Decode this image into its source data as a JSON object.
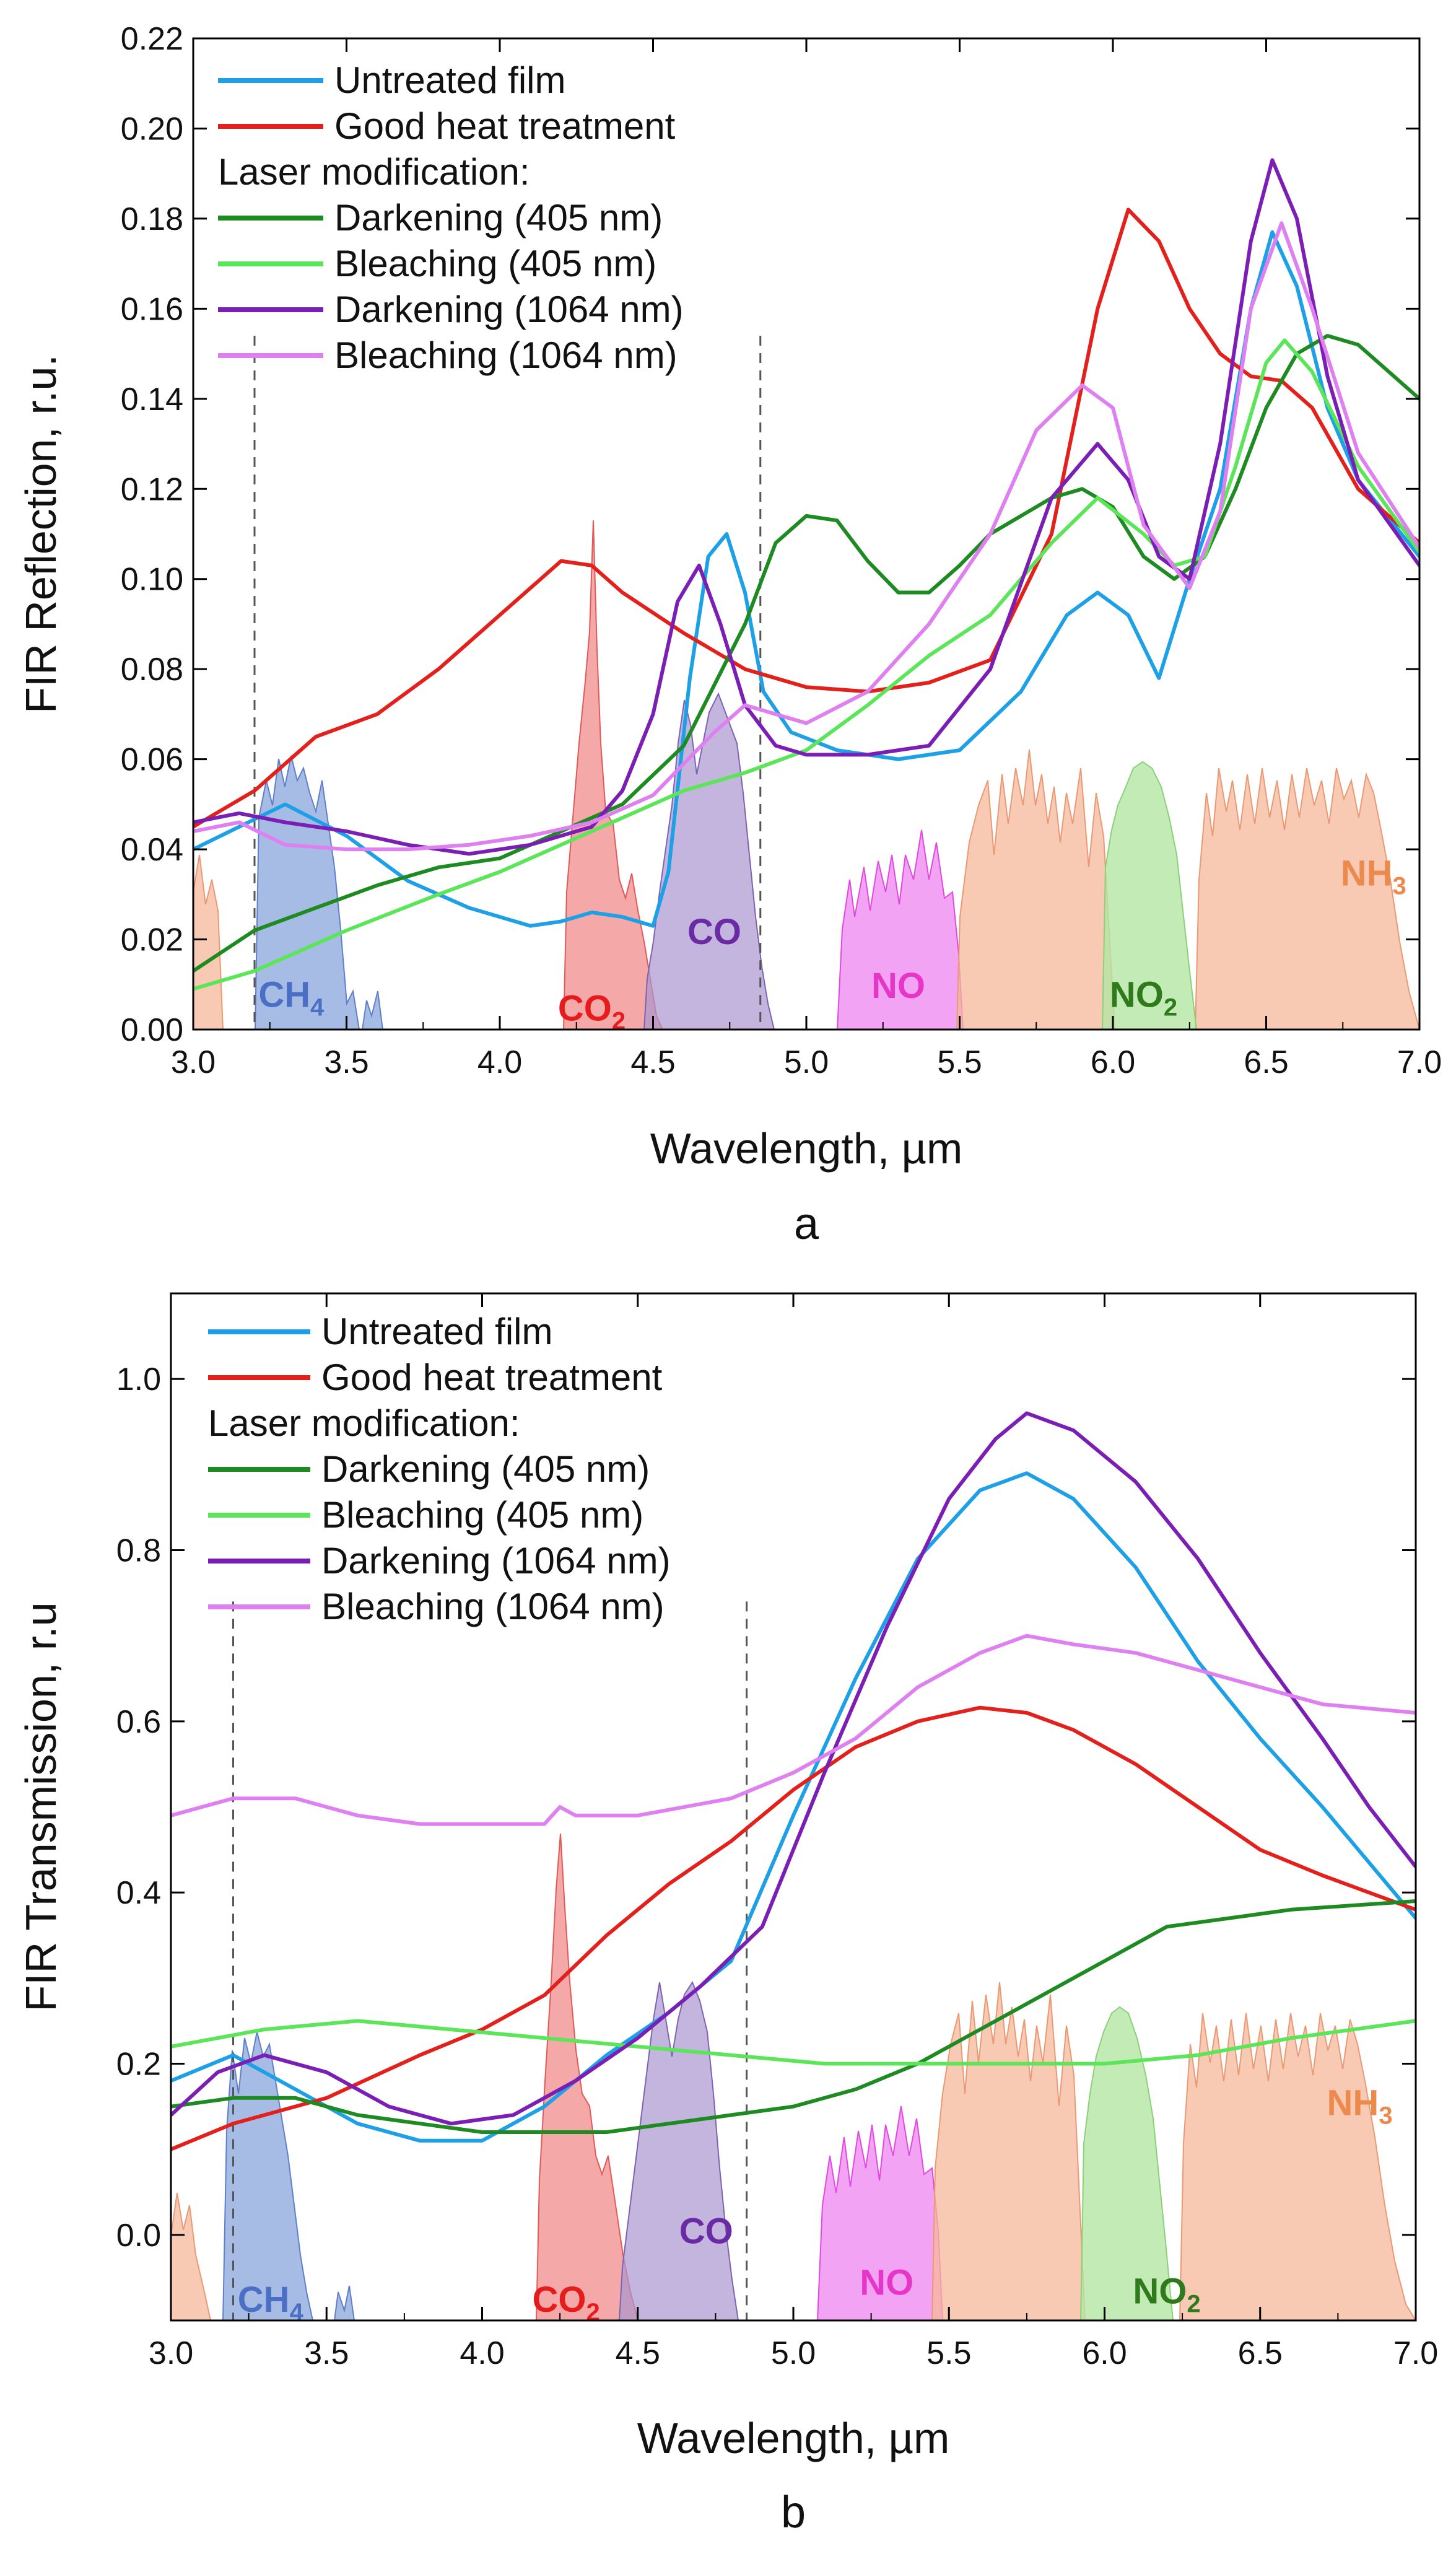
{
  "figure": {
    "panel_labels": [
      "a",
      "b"
    ]
  },
  "chart_data": [
    {
      "id": "a",
      "type": "line",
      "title": "",
      "xlabel": "Wavelength, µm",
      "ylabel": "FIR Reflection, r.u.",
      "xlim": [
        3.0,
        7.0
      ],
      "ylim": [
        0.0,
        0.22
      ],
      "xticks": [
        3.0,
        3.5,
        4.0,
        4.5,
        5.0,
        5.5,
        6.0,
        6.5,
        7.0
      ],
      "yticks": [
        0.0,
        0.02,
        0.04,
        0.06,
        0.08,
        0.1,
        0.12,
        0.14,
        0.16,
        0.18,
        0.2,
        0.22
      ],
      "ytick_decimals": 2,
      "legend_heading": "Laser modification:",
      "dashed_lines_x": [
        3.2,
        4.85
      ],
      "series": [
        {
          "name": "Untreated film",
          "color": "#1ea0e6",
          "x": [
            3.0,
            3.15,
            3.3,
            3.5,
            3.7,
            3.9,
            4.1,
            4.2,
            4.3,
            4.4,
            4.5,
            4.55,
            4.62,
            4.68,
            4.74,
            4.8,
            4.86,
            4.95,
            5.1,
            5.3,
            5.5,
            5.7,
            5.85,
            5.95,
            6.05,
            6.15,
            6.25,
            6.35,
            6.45,
            6.52,
            6.6,
            6.7,
            6.8,
            7.0
          ],
          "y": [
            0.04,
            0.045,
            0.05,
            0.043,
            0.033,
            0.027,
            0.023,
            0.024,
            0.026,
            0.025,
            0.023,
            0.035,
            0.078,
            0.105,
            0.11,
            0.097,
            0.075,
            0.066,
            0.062,
            0.06,
            0.062,
            0.075,
            0.092,
            0.097,
            0.092,
            0.078,
            0.1,
            0.12,
            0.16,
            0.177,
            0.165,
            0.138,
            0.122,
            0.105
          ]
        },
        {
          "name": "Good heat treatment",
          "color": "#e3211c",
          "x": [
            3.0,
            3.2,
            3.4,
            3.6,
            3.8,
            4.0,
            4.2,
            4.3,
            4.4,
            4.6,
            4.8,
            5.0,
            5.2,
            5.4,
            5.6,
            5.8,
            5.95,
            6.05,
            6.15,
            6.25,
            6.35,
            6.45,
            6.55,
            6.65,
            6.8,
            7.0
          ],
          "y": [
            0.045,
            0.053,
            0.065,
            0.07,
            0.08,
            0.092,
            0.104,
            0.103,
            0.097,
            0.088,
            0.08,
            0.076,
            0.075,
            0.077,
            0.082,
            0.11,
            0.16,
            0.182,
            0.175,
            0.16,
            0.15,
            0.145,
            0.144,
            0.138,
            0.12,
            0.108
          ]
        },
        {
          "name": "Darkening (405 nm)",
          "color": "#1e8a22",
          "x": [
            3.0,
            3.2,
            3.4,
            3.6,
            3.8,
            4.0,
            4.2,
            4.4,
            4.6,
            4.8,
            4.9,
            5.0,
            5.1,
            5.2,
            5.3,
            5.4,
            5.5,
            5.6,
            5.8,
            5.9,
            6.0,
            6.1,
            6.2,
            6.3,
            6.4,
            6.5,
            6.6,
            6.7,
            6.8,
            7.0
          ],
          "y": [
            0.013,
            0.022,
            0.027,
            0.032,
            0.036,
            0.038,
            0.044,
            0.05,
            0.063,
            0.09,
            0.108,
            0.114,
            0.113,
            0.104,
            0.097,
            0.097,
            0.103,
            0.11,
            0.118,
            0.12,
            0.116,
            0.105,
            0.1,
            0.105,
            0.12,
            0.138,
            0.15,
            0.154,
            0.152,
            0.14
          ]
        },
        {
          "name": "Bleaching (405 nm)",
          "color": "#5de55a",
          "x": [
            3.0,
            3.2,
            3.5,
            3.8,
            4.0,
            4.2,
            4.4,
            4.6,
            4.8,
            5.0,
            5.2,
            5.4,
            5.6,
            5.8,
            5.95,
            6.1,
            6.2,
            6.3,
            6.4,
            6.5,
            6.56,
            6.65,
            6.8,
            7.0
          ],
          "y": [
            0.009,
            0.013,
            0.022,
            0.03,
            0.035,
            0.041,
            0.047,
            0.053,
            0.057,
            0.062,
            0.072,
            0.083,
            0.092,
            0.108,
            0.118,
            0.11,
            0.103,
            0.105,
            0.125,
            0.148,
            0.153,
            0.146,
            0.125,
            0.106
          ]
        },
        {
          "name": "Darkening (1064 nm)",
          "color": "#7b1fb4",
          "x": [
            3.0,
            3.15,
            3.3,
            3.5,
            3.7,
            3.9,
            4.1,
            4.3,
            4.4,
            4.5,
            4.58,
            4.65,
            4.72,
            4.8,
            4.9,
            5.0,
            5.2,
            5.4,
            5.6,
            5.8,
            5.95,
            6.05,
            6.15,
            6.25,
            6.35,
            6.45,
            6.52,
            6.6,
            6.7,
            6.8,
            7.0
          ],
          "y": [
            0.046,
            0.048,
            0.046,
            0.044,
            0.041,
            0.039,
            0.041,
            0.045,
            0.053,
            0.07,
            0.095,
            0.103,
            0.09,
            0.072,
            0.063,
            0.061,
            0.061,
            0.063,
            0.08,
            0.118,
            0.13,
            0.122,
            0.105,
            0.1,
            0.13,
            0.175,
            0.193,
            0.18,
            0.145,
            0.122,
            0.103
          ]
        },
        {
          "name": "Bleaching (1064 nm)",
          "color": "#df80f0",
          "x": [
            3.0,
            3.15,
            3.3,
            3.5,
            3.7,
            3.9,
            4.1,
            4.3,
            4.5,
            4.7,
            4.8,
            4.9,
            5.0,
            5.2,
            5.4,
            5.6,
            5.75,
            5.9,
            6.0,
            6.1,
            6.25,
            6.35,
            6.45,
            6.55,
            6.65,
            6.8,
            7.0
          ],
          "y": [
            0.044,
            0.046,
            0.041,
            0.04,
            0.04,
            0.041,
            0.043,
            0.046,
            0.052,
            0.066,
            0.072,
            0.07,
            0.068,
            0.075,
            0.09,
            0.11,
            0.133,
            0.143,
            0.138,
            0.112,
            0.098,
            0.115,
            0.16,
            0.179,
            0.16,
            0.128,
            0.107
          ]
        }
      ],
      "gas_labels": [
        {
          "text": "CH",
          "sub": "4",
          "color": "#4a6fc4",
          "x": 3.32,
          "y": 0.005
        },
        {
          "text": "CO",
          "sub": "2",
          "color": "#e61c1c",
          "x": 4.3,
          "y": 0.002
        },
        {
          "text": "CO",
          "sub": "",
          "color": "#6a2aa3",
          "x": 4.7,
          "y": 0.019
        },
        {
          "text": "NO",
          "sub": "",
          "color": "#e636c8",
          "x": 5.3,
          "y": 0.007
        },
        {
          "text": "NO",
          "sub": "2",
          "color": "#2f7a1a",
          "x": 6.1,
          "y": 0.005
        },
        {
          "text": "NH",
          "sub": "3",
          "color": "#ec8a4e",
          "x": 6.85,
          "y": 0.032
        }
      ]
    },
    {
      "id": "b",
      "type": "line",
      "title": "",
      "xlabel": "Wavelength, µm",
      "ylabel": "FIR Transmission, r.u",
      "xlim": [
        3.0,
        7.0
      ],
      "ylim": [
        -0.1,
        1.1
      ],
      "xticks": [
        3.0,
        3.5,
        4.0,
        4.5,
        5.0,
        5.5,
        6.0,
        6.5,
        7.0
      ],
      "yticks": [
        0.0,
        0.2,
        0.4,
        0.6,
        0.8,
        1.0
      ],
      "ytick_decimals": 1,
      "legend_heading": "Laser modification:",
      "dashed_lines_x": [
        3.2,
        4.85
      ],
      "series": [
        {
          "name": "Untreated film",
          "color": "#1ea0e6",
          "x": [
            3.0,
            3.2,
            3.4,
            3.6,
            3.8,
            4.0,
            4.2,
            4.4,
            4.6,
            4.8,
            5.0,
            5.2,
            5.4,
            5.6,
            5.75,
            5.9,
            6.1,
            6.3,
            6.5,
            6.7,
            7.0
          ],
          "y": [
            0.18,
            0.21,
            0.17,
            0.13,
            0.11,
            0.11,
            0.15,
            0.21,
            0.26,
            0.32,
            0.49,
            0.65,
            0.79,
            0.87,
            0.89,
            0.86,
            0.78,
            0.67,
            0.58,
            0.5,
            0.37
          ]
        },
        {
          "name": "Good heat treatment",
          "color": "#e3211c",
          "x": [
            3.0,
            3.2,
            3.5,
            3.8,
            4.0,
            4.2,
            4.4,
            4.6,
            4.8,
            5.0,
            5.2,
            5.4,
            5.6,
            5.75,
            5.9,
            6.1,
            6.3,
            6.5,
            6.7,
            6.85,
            7.0
          ],
          "y": [
            0.1,
            0.13,
            0.16,
            0.21,
            0.24,
            0.28,
            0.35,
            0.41,
            0.46,
            0.52,
            0.57,
            0.6,
            0.616,
            0.61,
            0.59,
            0.55,
            0.5,
            0.45,
            0.42,
            0.4,
            0.38
          ]
        },
        {
          "name": "Darkening (405 nm)",
          "color": "#1e8a22",
          "x": [
            3.0,
            3.2,
            3.4,
            3.6,
            3.8,
            4.0,
            4.2,
            4.4,
            4.6,
            4.8,
            5.0,
            5.2,
            5.4,
            5.6,
            5.8,
            6.0,
            6.2,
            6.4,
            6.6,
            6.8,
            7.0
          ],
          "y": [
            0.15,
            0.16,
            0.16,
            0.14,
            0.13,
            0.12,
            0.12,
            0.12,
            0.13,
            0.14,
            0.15,
            0.17,
            0.2,
            0.24,
            0.28,
            0.32,
            0.36,
            0.37,
            0.38,
            0.385,
            0.39
          ]
        },
        {
          "name": "Bleaching (405 nm)",
          "color": "#5de55a",
          "x": [
            3.0,
            3.3,
            3.6,
            3.9,
            4.2,
            4.5,
            4.8,
            5.1,
            5.4,
            5.7,
            6.0,
            6.3,
            6.6,
            7.0
          ],
          "y": [
            0.22,
            0.24,
            0.25,
            0.24,
            0.23,
            0.22,
            0.21,
            0.2,
            0.2,
            0.2,
            0.2,
            0.21,
            0.23,
            0.25
          ]
        },
        {
          "name": "Darkening (1064 nm)",
          "color": "#7b1fb4",
          "x": [
            3.0,
            3.15,
            3.3,
            3.5,
            3.7,
            3.9,
            4.1,
            4.3,
            4.5,
            4.7,
            4.9,
            5.1,
            5.3,
            5.5,
            5.65,
            5.75,
            5.9,
            6.1,
            6.3,
            6.5,
            6.7,
            6.85,
            7.0
          ],
          "y": [
            0.14,
            0.19,
            0.21,
            0.19,
            0.15,
            0.13,
            0.14,
            0.18,
            0.23,
            0.29,
            0.36,
            0.54,
            0.71,
            0.86,
            0.93,
            0.96,
            0.94,
            0.88,
            0.79,
            0.68,
            0.58,
            0.5,
            0.43
          ]
        },
        {
          "name": "Bleaching (1064 nm)",
          "color": "#df80f0",
          "x": [
            3.0,
            3.2,
            3.4,
            3.6,
            3.8,
            4.0,
            4.2,
            4.25,
            4.3,
            4.5,
            4.8,
            5.0,
            5.2,
            5.4,
            5.6,
            5.75,
            5.9,
            6.1,
            6.3,
            6.5,
            6.7,
            7.0
          ],
          "y": [
            0.49,
            0.51,
            0.51,
            0.49,
            0.48,
            0.48,
            0.48,
            0.5,
            0.49,
            0.49,
            0.51,
            0.54,
            0.58,
            0.64,
            0.68,
            0.7,
            0.69,
            0.68,
            0.66,
            0.64,
            0.62,
            0.61
          ]
        }
      ],
      "gas_labels": [
        {
          "text": "CH",
          "sub": "4",
          "color": "#4a6fc4",
          "x": 3.32,
          "y": -0.09
        },
        {
          "text": "CO",
          "sub": "2",
          "color": "#e61c1c",
          "x": 4.27,
          "y": -0.09
        },
        {
          "text": "CO",
          "sub": "",
          "color": "#6a2aa3",
          "x": 4.72,
          "y": -0.01
        },
        {
          "text": "NO",
          "sub": "",
          "color": "#e636c8",
          "x": 5.3,
          "y": -0.07
        },
        {
          "text": "NO",
          "sub": "2",
          "color": "#2f7a1a",
          "x": 6.2,
          "y": -0.08
        },
        {
          "text": "NH",
          "sub": "3",
          "color": "#ec8a4e",
          "x": 6.82,
          "y": 0.14
        }
      ]
    }
  ]
}
